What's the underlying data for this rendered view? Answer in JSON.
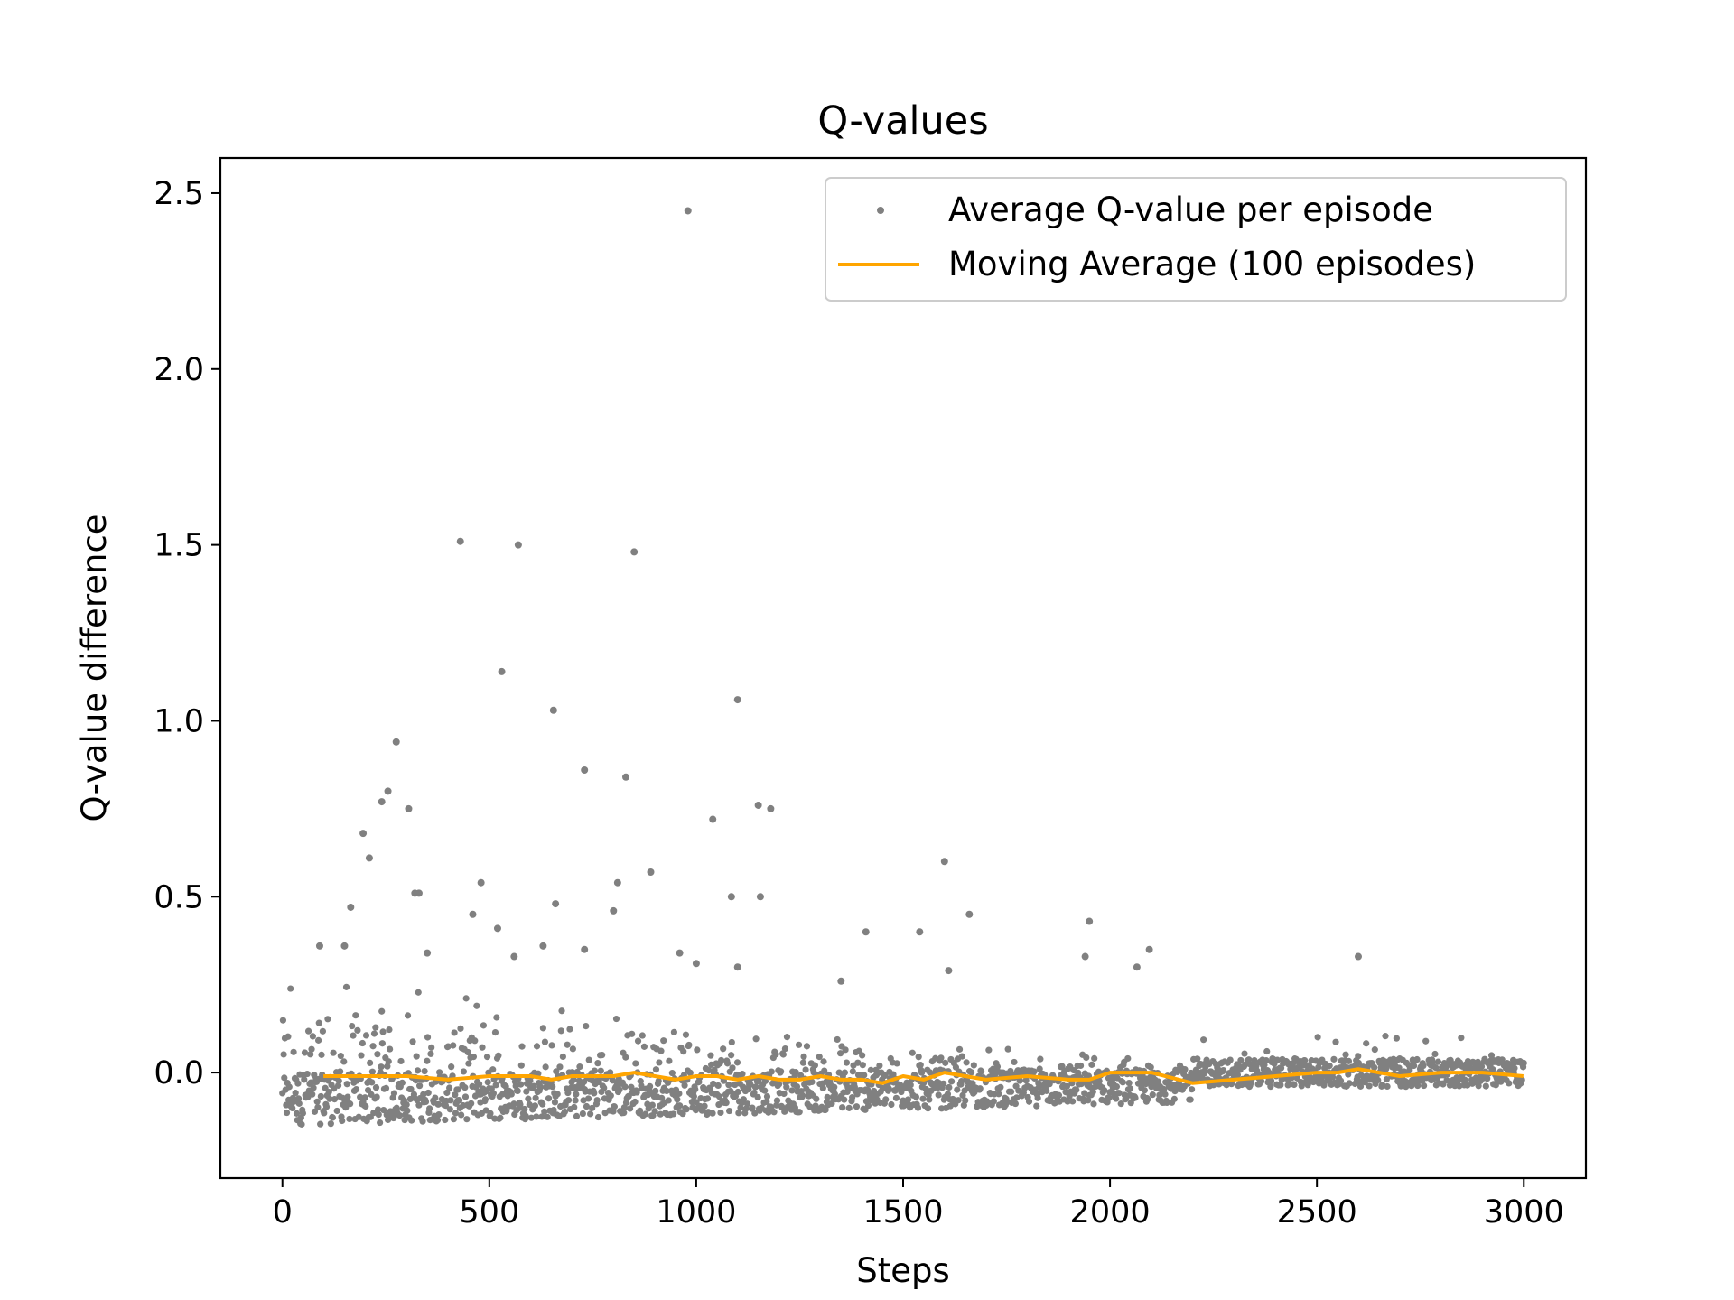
{
  "chart_data": {
    "type": "scatter",
    "title": "Q-values",
    "xlabel": "Steps",
    "ylabel": "Q-value difference",
    "xlim": [
      -150,
      3150
    ],
    "ylim": [
      -0.3,
      2.6
    ],
    "xticks": [
      0,
      500,
      1000,
      1500,
      2000,
      2500,
      3000
    ],
    "xtick_labels": [
      "0",
      "500",
      "1000",
      "1500",
      "2000",
      "2500",
      "3000"
    ],
    "yticks": [
      0.0,
      0.5,
      1.0,
      1.5,
      2.0,
      2.5
    ],
    "ytick_labels": [
      "0.0",
      "0.5",
      "1.0",
      "1.5",
      "2.0",
      "2.5"
    ],
    "grid": false,
    "legend_position": "top-right",
    "series": [
      {
        "name": "Average Q-value per episode",
        "kind": "scatter",
        "color": "#808080",
        "points": [
          [
            980,
            2.45
          ],
          [
            430,
            1.51
          ],
          [
            570,
            1.5
          ],
          [
            850,
            1.48
          ],
          [
            530,
            1.14
          ],
          [
            1100,
            1.06
          ],
          [
            655,
            1.03
          ],
          [
            275,
            0.94
          ],
          [
            730,
            0.86
          ],
          [
            830,
            0.84
          ],
          [
            255,
            0.8
          ],
          [
            240,
            0.77
          ],
          [
            305,
            0.75
          ],
          [
            1150,
            0.76
          ],
          [
            1180,
            0.75
          ],
          [
            1040,
            0.72
          ],
          [
            195,
            0.68
          ],
          [
            210,
            0.61
          ],
          [
            1600,
            0.6
          ],
          [
            890,
            0.57
          ],
          [
            810,
            0.54
          ],
          [
            480,
            0.54
          ],
          [
            1155,
            0.5
          ],
          [
            1085,
            0.5
          ],
          [
            320,
            0.51
          ],
          [
            330,
            0.51
          ],
          [
            165,
            0.47
          ],
          [
            660,
            0.48
          ],
          [
            1660,
            0.45
          ],
          [
            460,
            0.45
          ],
          [
            800,
            0.46
          ],
          [
            1950,
            0.43
          ],
          [
            1540,
            0.4
          ],
          [
            1410,
            0.4
          ],
          [
            520,
            0.41
          ],
          [
            2095,
            0.35
          ],
          [
            630,
            0.36
          ],
          [
            730,
            0.35
          ],
          [
            1940,
            0.33
          ],
          [
            2600,
            0.33
          ],
          [
            150,
            0.36
          ],
          [
            90,
            0.36
          ],
          [
            350,
            0.34
          ],
          [
            1000,
            0.31
          ],
          [
            1100,
            0.3
          ],
          [
            960,
            0.34
          ],
          [
            560,
            0.33
          ],
          [
            2065,
            0.3
          ],
          [
            1610,
            0.29
          ],
          [
            1350,
            0.26
          ]
        ]
      },
      {
        "name": "Moving Average (100 episodes)",
        "kind": "line",
        "color": "#ffa500",
        "x": [
          99,
          200,
          300,
          400,
          500,
          600,
          650,
          700,
          750,
          800,
          850,
          900,
          950,
          1000,
          1050,
          1100,
          1150,
          1200,
          1250,
          1300,
          1350,
          1400,
          1450,
          1500,
          1550,
          1600,
          1700,
          1800,
          1900,
          1950,
          2000,
          2100,
          2200,
          2300,
          2400,
          2500,
          2550,
          2600,
          2650,
          2700,
          2800,
          2900,
          2999
        ],
        "y": [
          -0.01,
          -0.01,
          -0.01,
          -0.02,
          -0.01,
          -0.01,
          -0.02,
          -0.01,
          -0.01,
          -0.01,
          0.0,
          -0.01,
          -0.02,
          -0.01,
          -0.01,
          -0.02,
          -0.01,
          -0.02,
          -0.02,
          -0.01,
          -0.02,
          -0.02,
          -0.03,
          -0.01,
          -0.02,
          0.0,
          -0.02,
          -0.01,
          -0.02,
          -0.02,
          0.0,
          0.0,
          -0.03,
          -0.02,
          -0.01,
          0.0,
          0.0,
          0.01,
          0.0,
          -0.01,
          0.0,
          0.0,
          -0.01
        ]
      }
    ]
  }
}
